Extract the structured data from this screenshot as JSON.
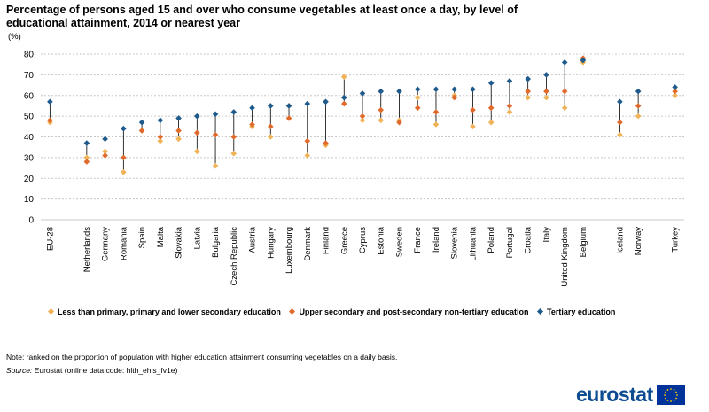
{
  "title": "Percentage of persons aged 15 and over who consume vegetables at least once a day, by level of educational attainment, 2014 or nearest year",
  "unit": "(%)",
  "note": "Note: ranked on the proportion of population with higher education attainment consuming vegetables on a daily basis.",
  "source_label": "Source:",
  "source_text": "Eurostat (online data code: hlth_ehis_fv1e)",
  "logo_text": "eurostat",
  "colors": {
    "low": "#f0b357",
    "mid": "#e06a2b",
    "high": "#1f5a8c",
    "connector": "#000000",
    "grid": "#c8c8c8",
    "logo": "#0e4c92",
    "flag_blue": "#003399",
    "flag_star": "#ffcc00"
  },
  "chart_data": {
    "type": "scatter",
    "title": "Percentage of persons aged 15 and over who consume vegetables at least once a day, by level of educational attainment, 2014 or nearest year",
    "ylabel": "(%)",
    "xlabel": "",
    "ylim": [
      0,
      80
    ],
    "yticks": [
      0,
      10,
      20,
      30,
      40,
      50,
      60,
      70,
      80
    ],
    "grid": true,
    "legend_position": "bottom",
    "categories": [
      "EU-28",
      "",
      "Netherlands",
      "Germany",
      "Romania",
      "Spain",
      "Malta",
      "Slovakia",
      "Latvia",
      "Bulgaria",
      "Czech Republic",
      "Austria",
      "Hungary",
      "Luxembourg",
      "Denmark",
      "Finland",
      "Greece",
      "Cyprus",
      "Estonia",
      "Sweden",
      "France",
      "Ireland",
      "Slovenia",
      "Lithuania",
      "Poland",
      "Portugal",
      "Croatia",
      "Italy",
      "United Kingdom",
      "Belgium",
      "",
      "Iceland",
      "Norway",
      "",
      "Turkey"
    ],
    "series": [
      {
        "name": "Less than primary, primary and lower secondary education",
        "values": [
          47,
          null,
          30,
          33,
          23,
          43,
          38,
          39,
          33,
          26,
          32,
          45,
          40,
          55,
          31,
          36,
          69,
          48,
          48,
          48,
          59,
          46,
          60,
          45,
          47,
          52,
          59,
          59,
          54,
          76,
          null,
          41,
          50,
          null,
          60
        ]
      },
      {
        "name": "Upper secondary and post-secondary non-tertiary education",
        "values": [
          48,
          null,
          28,
          31,
          30,
          43,
          40,
          43,
          42,
          41,
          40,
          46,
          45,
          49,
          38,
          37,
          56,
          50,
          53,
          47,
          54,
          52,
          59,
          53,
          54,
          55,
          62,
          62,
          62,
          78,
          null,
          47,
          55,
          null,
          62
        ]
      },
      {
        "name": "Tertiary education",
        "values": [
          57,
          null,
          37,
          39,
          44,
          47,
          48,
          49,
          50,
          51,
          52,
          54,
          55,
          55,
          56,
          57,
          59,
          61,
          62,
          62,
          63,
          63,
          63,
          63,
          66,
          67,
          68,
          70,
          76,
          77,
          null,
          57,
          62,
          null,
          64
        ]
      }
    ]
  }
}
